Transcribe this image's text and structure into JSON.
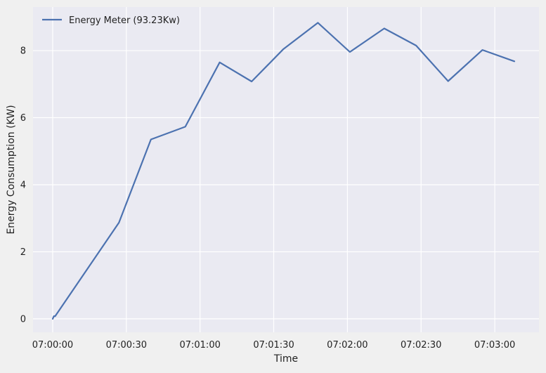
{
  "chart_data": {
    "type": "line",
    "title": "",
    "xlabel": "Time",
    "ylabel": "Energy Consumption (KW)",
    "x_ticks": [
      "07:00:00",
      "07:00:30",
      "07:01:00",
      "07:01:30",
      "07:02:00",
      "07:02:30",
      "07:03:00"
    ],
    "y_ticks": [
      "0",
      "2",
      "4",
      "6",
      "8"
    ],
    "xlim_seconds": [
      -8,
      198
    ],
    "ylim": [
      -0.4,
      9.3
    ],
    "grid": true,
    "legend_position": "top-left",
    "series": [
      {
        "name": "Energy Meter (93.23Kw)",
        "color": "#4c72b0",
        "x_seconds": [
          0,
          0.5,
          1,
          27,
          40,
          54,
          68,
          81,
          94,
          108,
          121,
          135,
          148,
          161,
          175,
          188
        ],
        "values": [
          0.0,
          0.08,
          0.08,
          2.87,
          5.35,
          5.73,
          7.65,
          7.08,
          8.05,
          8.83,
          7.96,
          8.66,
          8.15,
          7.09,
          8.02,
          7.68
        ]
      }
    ]
  },
  "colors": {
    "plot_background": "#eaeaf2",
    "figure_background": "#f0f0f0",
    "grid": "#ffffff"
  }
}
